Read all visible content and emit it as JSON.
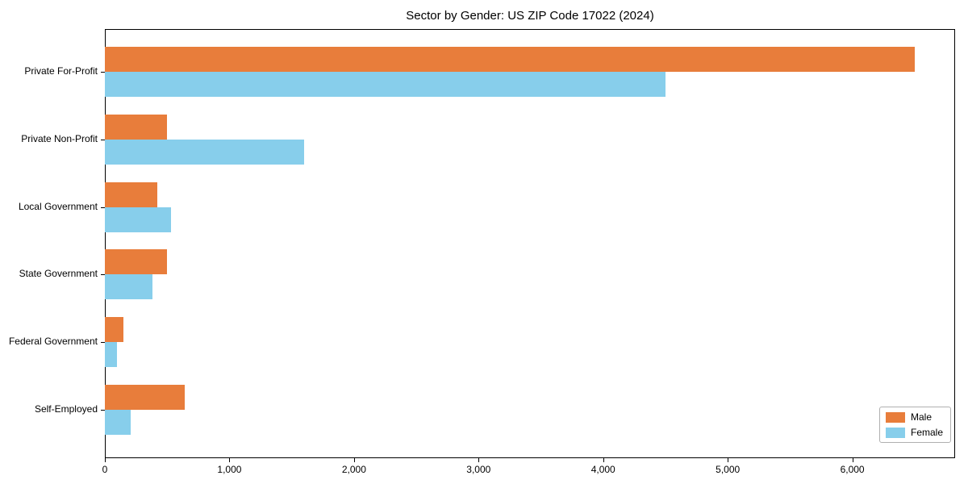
{
  "chart_data": {
    "type": "bar",
    "orientation": "horizontal",
    "title": "Sector by Gender: US ZIP Code 17022 (2024)",
    "categories": [
      "Private For-Profit",
      "Private Non-Profit",
      "Local Government",
      "State Government",
      "Federal Government",
      "Self-Employed"
    ],
    "series": [
      {
        "name": "Male",
        "color": "#e87d3b",
        "values": [
          6500,
          500,
          420,
          500,
          150,
          640
        ]
      },
      {
        "name": "Female",
        "color": "#87ceeb",
        "values": [
          4500,
          1600,
          530,
          380,
          100,
          210
        ]
      }
    ],
    "xlabel": "",
    "ylabel": "",
    "xlim": [
      0,
      6825
    ],
    "x_ticks": [
      0,
      1000,
      2000,
      3000,
      4000,
      5000,
      6000
    ],
    "x_tick_labels": [
      "0",
      "1,000",
      "2,000",
      "3,000",
      "4,000",
      "5,000",
      "6,000"
    ],
    "legend_position": "lower right",
    "grid": false,
    "background_color": "#ffffff",
    "axis_color": "#000000"
  }
}
